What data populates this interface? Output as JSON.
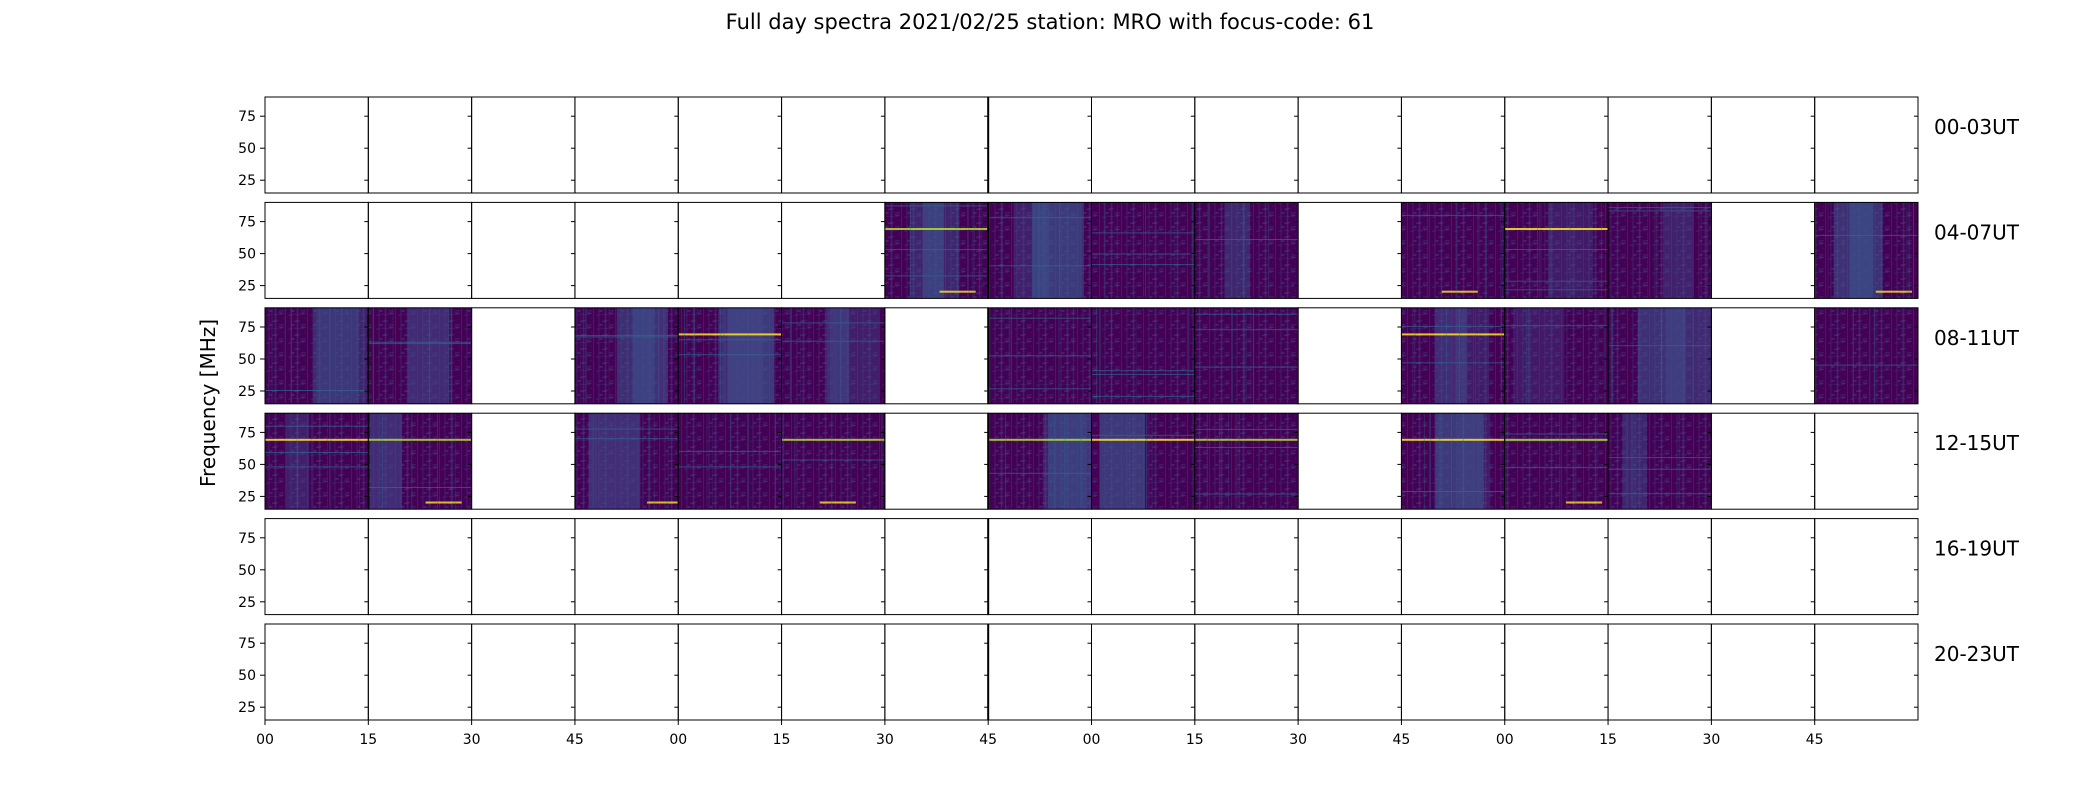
{
  "chart_data": {
    "type": "heatmap",
    "title": "Full day spectra 2021/02/25 station: MRO with focus-code: 61",
    "ylabel": "Frequency [MHz]",
    "xlabel": "",
    "y_ticks": [
      "75",
      "50",
      "25"
    ],
    "y_tick_values": [
      75,
      50,
      25
    ],
    "ylim": [
      15,
      90
    ],
    "x_ticks": [
      "00",
      "15",
      "30",
      "45",
      "00",
      "15",
      "30",
      "45",
      "00",
      "15",
      "30",
      "45",
      "00",
      "15",
      "30",
      "45"
    ],
    "panels_per_row": 16,
    "rows": [
      {
        "label": "00-03UT",
        "has_data": [
          0,
          0,
          0,
          0,
          0,
          0,
          0,
          0,
          0,
          0,
          0,
          0,
          0,
          0,
          0,
          0
        ]
      },
      {
        "label": "04-07UT",
        "has_data": [
          0,
          0,
          0,
          0,
          0,
          0,
          1,
          1,
          1,
          1,
          0,
          1,
          1,
          1,
          0,
          1
        ]
      },
      {
        "label": "08-11UT",
        "has_data": [
          1,
          1,
          0,
          1,
          1,
          1,
          0,
          1,
          1,
          1,
          0,
          1,
          1,
          1,
          0,
          1
        ]
      },
      {
        "label": "12-15UT",
        "has_data": [
          1,
          1,
          0,
          1,
          1,
          1,
          0,
          1,
          1,
          1,
          0,
          1,
          1,
          1,
          0,
          0
        ]
      },
      {
        "label": "16-19UT",
        "has_data": [
          0,
          0,
          0,
          0,
          0,
          0,
          0,
          0,
          0,
          0,
          0,
          0,
          0,
          0,
          0,
          0
        ]
      },
      {
        "label": "20-23UT",
        "has_data": [
          0,
          0,
          0,
          0,
          0,
          0,
          0,
          0,
          0,
          0,
          0,
          0,
          0,
          0,
          0,
          0
        ]
      }
    ],
    "colormap": {
      "low": "#440154",
      "mid": "#3b528b",
      "high": "#fde725",
      "line": "#b5de2b"
    },
    "grid": false,
    "legend": "none"
  }
}
